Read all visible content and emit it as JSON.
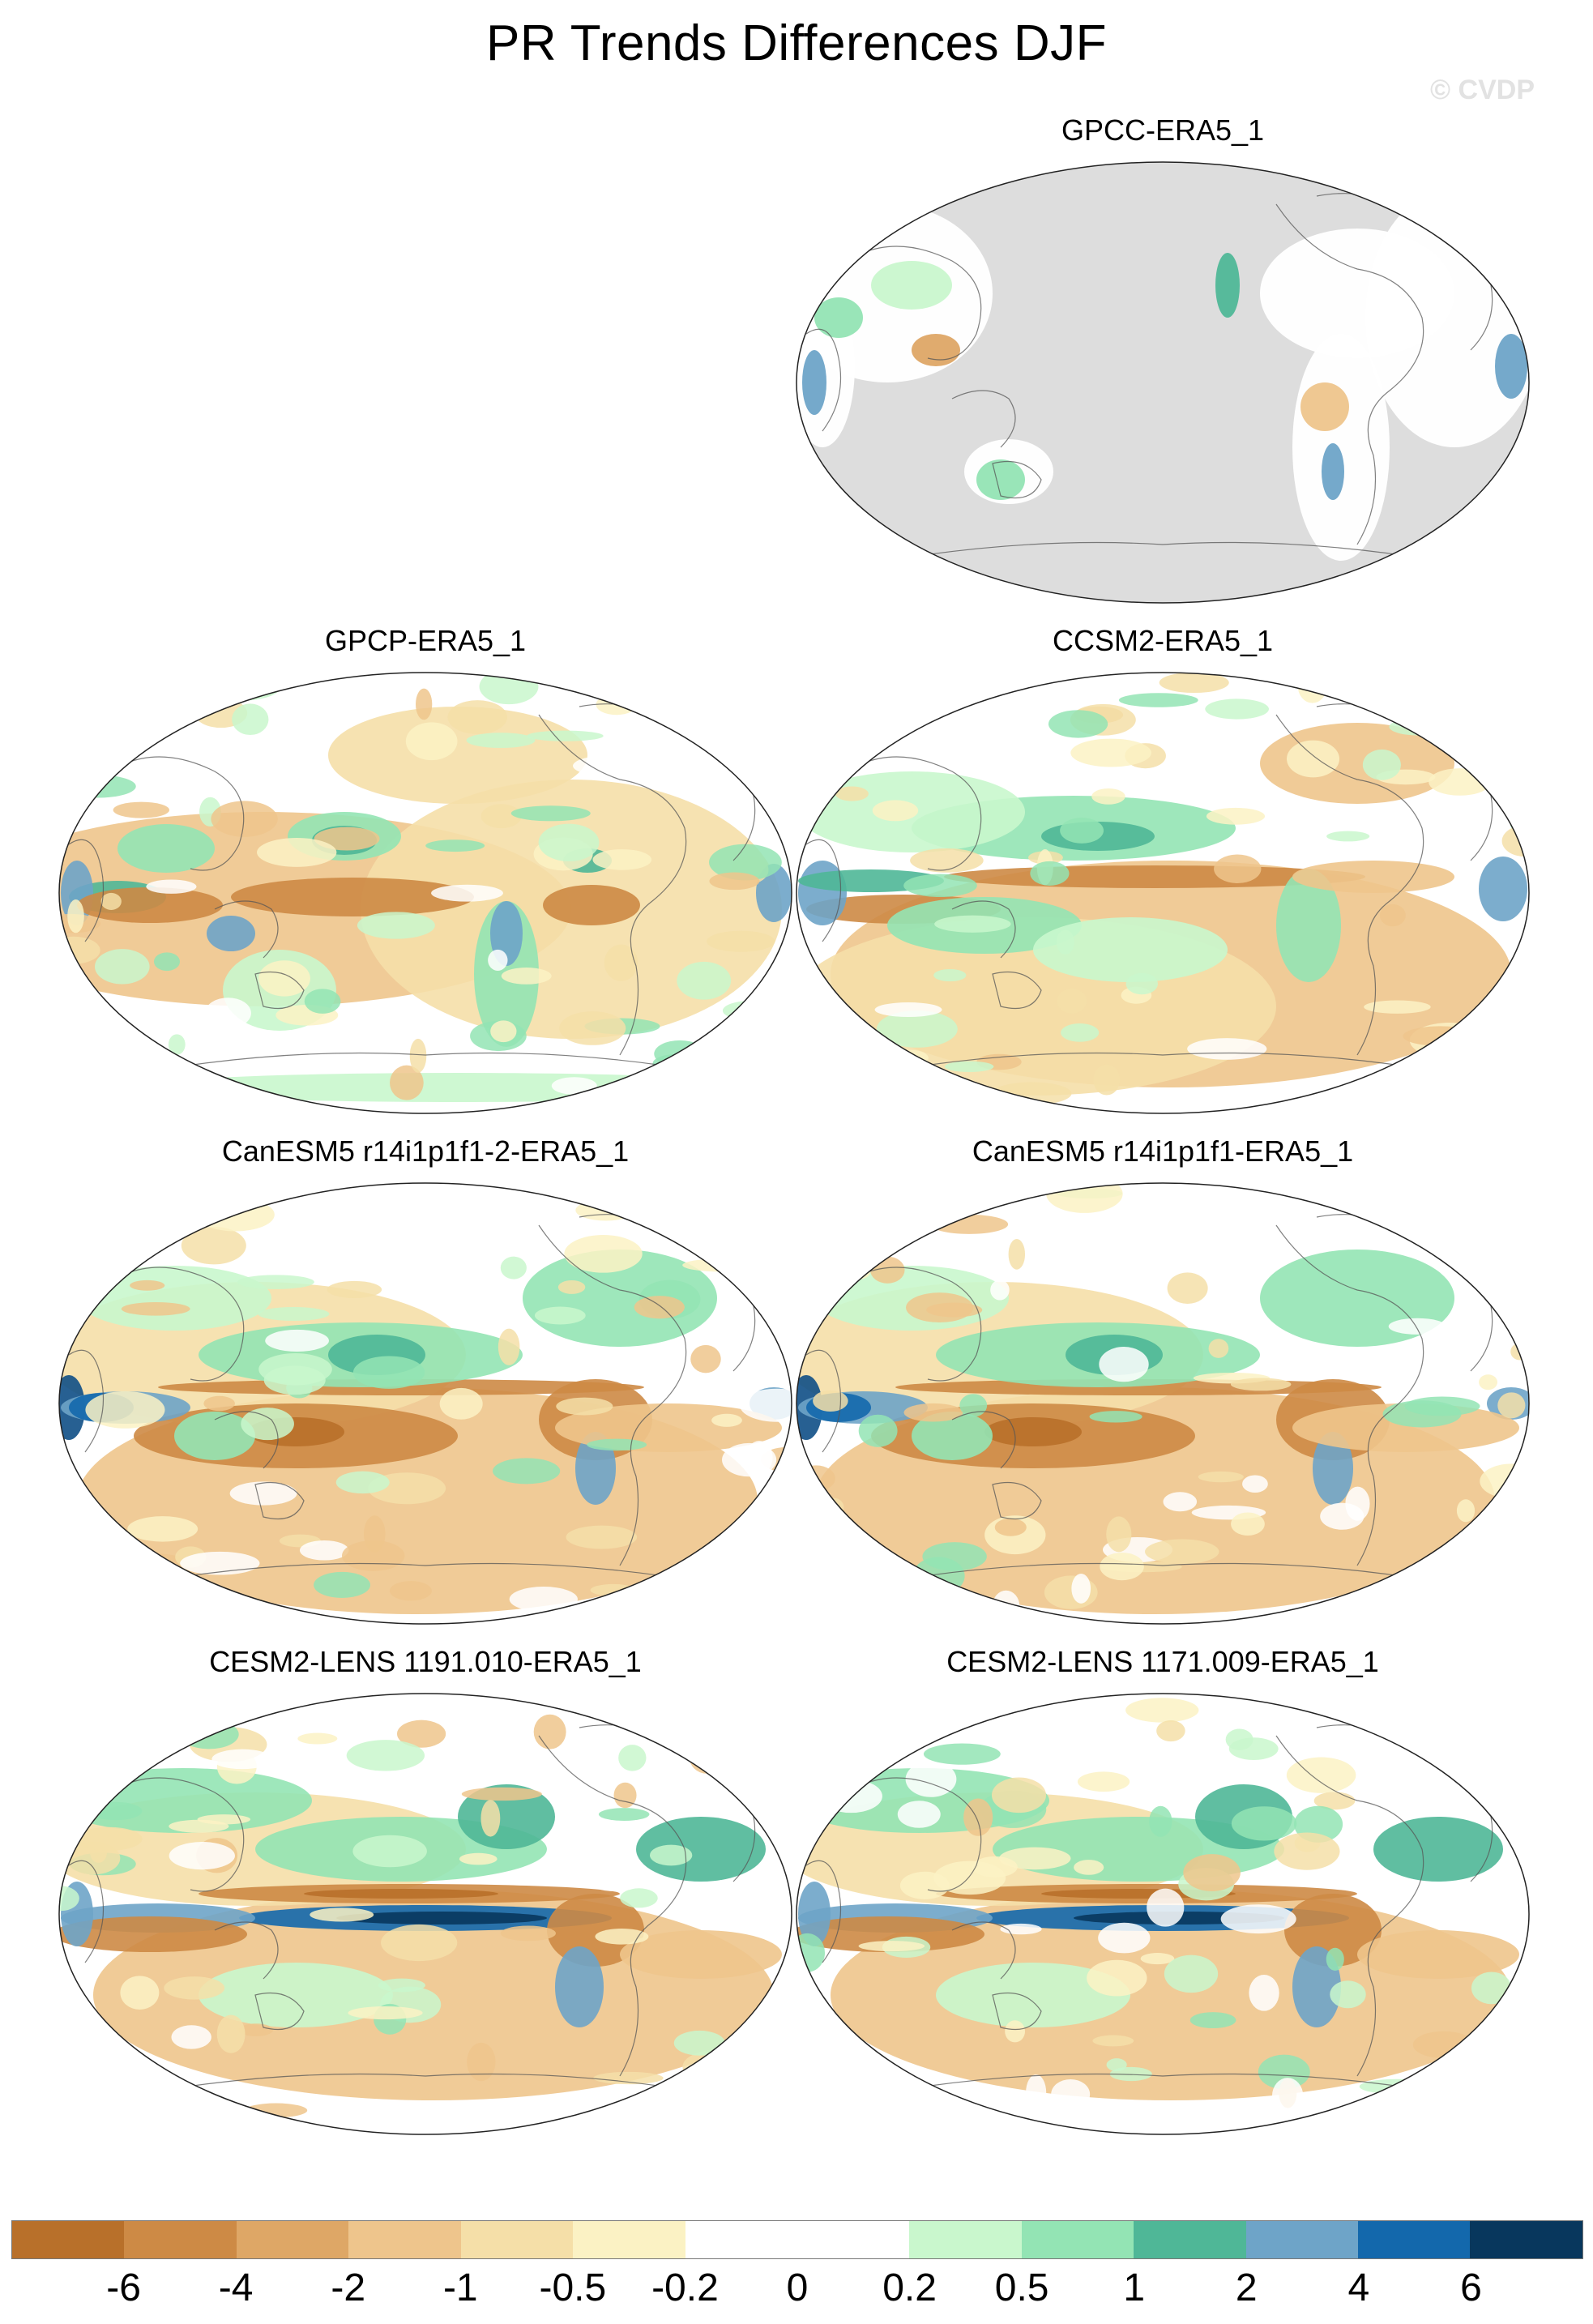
{
  "title": "PR Trends Differences DJF",
  "watermark": "© CVDP",
  "panels": [
    {
      "label": "GPCC-ERA5_1",
      "style": "land"
    },
    {
      "label": "GPCP-ERA5_1",
      "style": "obs"
    },
    {
      "label": "CCSM2-ERA5_1",
      "style": "model"
    },
    {
      "label": "CanESM5 r14i1p1f1-2-ERA5_1",
      "style": "canesm"
    },
    {
      "label": "CanESM5 r14i1p1f1-ERA5_1",
      "style": "canesm"
    },
    {
      "label": "CESM2-LENS 1191.010-ERA5_1",
      "style": "cesm"
    },
    {
      "label": "CESM2-LENS 1171.009-ERA5_1",
      "style": "cesm"
    }
  ],
  "colorbar": {
    "colors": [
      "#b8702a",
      "#cd8a45",
      "#dea766",
      "#eec58c",
      "#f5dfa8",
      "#fbf2c4",
      "#ffffff",
      "#ffffff",
      "#c9f7cd",
      "#93e4b4",
      "#4fb797",
      "#6ea4c8",
      "#1368ac",
      "#08375d"
    ],
    "labels": [
      "-6",
      "-4",
      "-2",
      "-1",
      "-0.5",
      "-0.2",
      "0",
      "0.2",
      "0.5",
      "1",
      "2",
      "4",
      "6"
    ]
  }
}
